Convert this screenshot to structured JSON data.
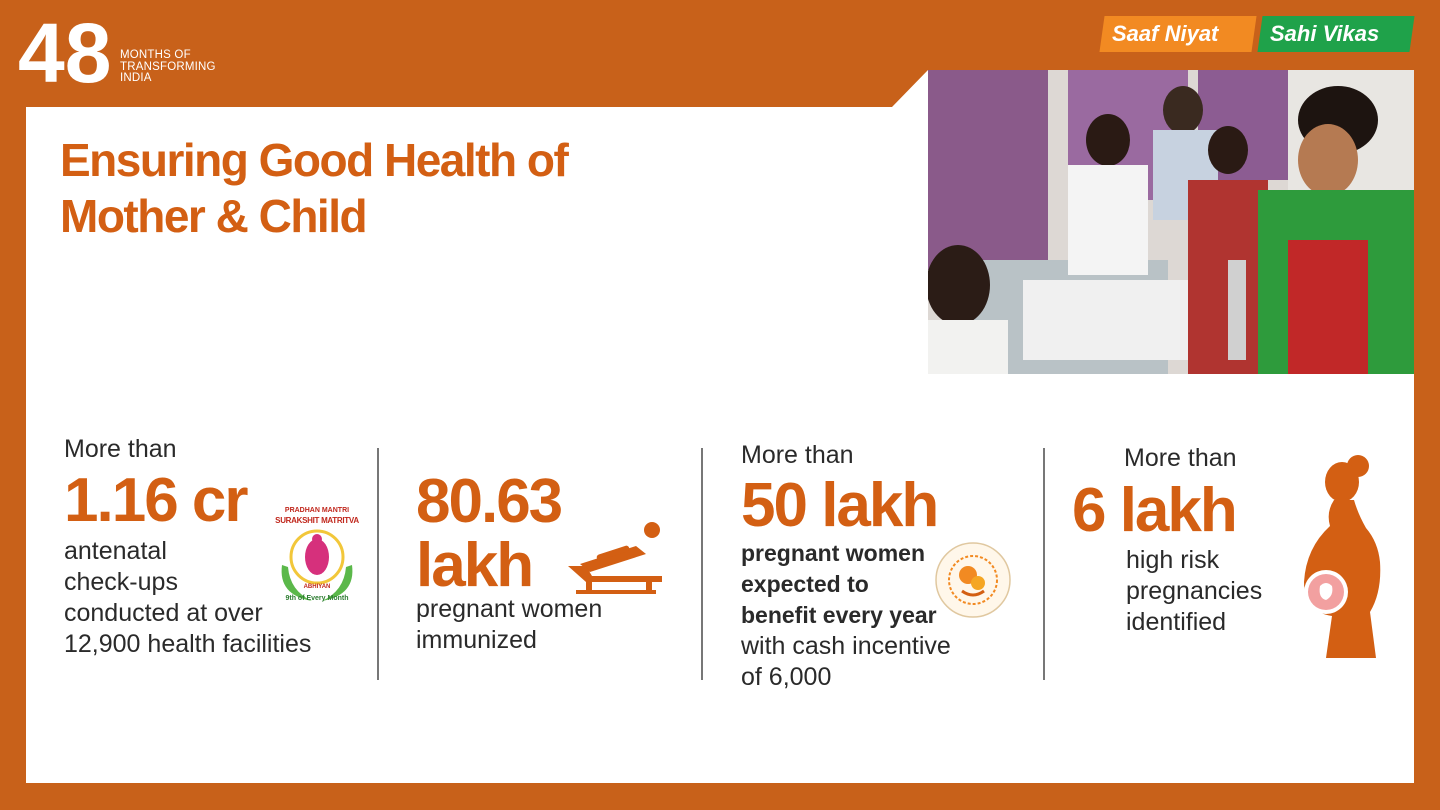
{
  "header": {
    "logo_number": "48",
    "logo_sub": [
      "MONTHS OF",
      "TRANSFORMING",
      "INDIA"
    ],
    "badge_left": "Saaf Niyat",
    "badge_right": "Sahi Vikas"
  },
  "title_lines": [
    "Ensuring Good Health of",
    "Mother & Child"
  ],
  "stats": [
    {
      "pre": "More than",
      "value": "1.16 cr",
      "desc": [
        "antenatal",
        "check-ups",
        "conducted at over",
        "12,900 health facilities"
      ]
    },
    {
      "value_lines": [
        "80.63",
        "lakh"
      ],
      "desc": [
        "pregnant women",
        "immunized"
      ]
    },
    {
      "pre": "More than",
      "value": "50 lakh",
      "desc_bold": [
        "pregnant women",
        "expected to",
        "benefit every year"
      ],
      "desc": [
        "with cash incentive",
        "of 6,000"
      ]
    },
    {
      "pre": "More than",
      "value": "6 lakh",
      "desc": [
        "high risk",
        "pregnancies",
        "identified"
      ]
    }
  ],
  "logos": {
    "pmsma_top": "PRADHAN MANTRI",
    "pmsma_mid": "SURAKSHIT MATRITVA",
    "pmsma_bot": "ABHIYAN",
    "pmsma_tag": "9th of Every Month"
  },
  "colors": {
    "brand_orange": "#d35f13",
    "frame": "#c8611a",
    "saaf": "#f28a22",
    "sahi": "#1fa24a"
  }
}
